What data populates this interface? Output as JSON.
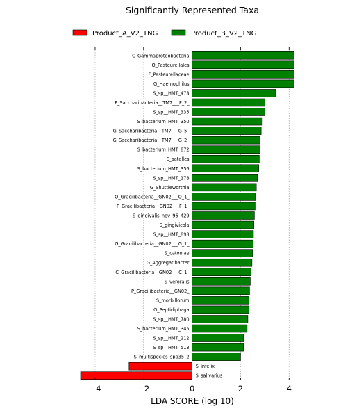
{
  "chart_data": {
    "type": "bar",
    "orientation": "horizontal",
    "title": "Significantly Represented Taxa",
    "xlabel": "LDA SCORE (log 10)",
    "ylabel": "",
    "xlim": [
      -4.6,
      4.25
    ],
    "xticks": [
      -4,
      -2,
      0,
      2,
      4
    ],
    "xtick_labels": [
      "−4",
      "−2",
      "0",
      "2",
      "4"
    ],
    "grid": "vertical dotted",
    "legend_position": "top",
    "series": [
      {
        "name": "Product_A_V2_TNG",
        "color": "#ff0000"
      },
      {
        "name": "Product_B_V2_TNG",
        "color": "#008000"
      }
    ],
    "bars": [
      {
        "label": "C_Gammaproteobacteria",
        "value": 4.2,
        "group": "Product_B_V2_TNG"
      },
      {
        "label": "O_Pasteurellales",
        "value": 4.2,
        "group": "Product_B_V2_TNG"
      },
      {
        "label": "F_Pasteurellaceae",
        "value": 4.2,
        "group": "Product_B_V2_TNG"
      },
      {
        "label": "G_Haemophilus",
        "value": 4.2,
        "group": "Product_B_V2_TNG"
      },
      {
        "label": "S_sp__HMT_473",
        "value": 3.45,
        "group": "Product_B_V2_TNG"
      },
      {
        "label": "F_Saccharibacteria__TM7___F_2_",
        "value": 3.0,
        "group": "Product_B_V2_TNG"
      },
      {
        "label": "S_sp__HMT_335",
        "value": 3.0,
        "group": "Product_B_V2_TNG"
      },
      {
        "label": "S_bacterium_HMT_350",
        "value": 2.9,
        "group": "Product_B_V2_TNG"
      },
      {
        "label": "G_Saccharibacteria__TM7___G_5_",
        "value": 2.85,
        "group": "Product_B_V2_TNG"
      },
      {
        "label": "G_Saccharibacteria__TM7___G_2_",
        "value": 2.8,
        "group": "Product_B_V2_TNG"
      },
      {
        "label": "S_bacterium_HMT_872",
        "value": 2.8,
        "group": "Product_B_V2_TNG"
      },
      {
        "label": "S_satelles",
        "value": 2.77,
        "group": "Product_B_V2_TNG"
      },
      {
        "label": "S_bacterium_HMT_356",
        "value": 2.75,
        "group": "Product_B_V2_TNG"
      },
      {
        "label": "S_sp__HMT_178",
        "value": 2.7,
        "group": "Product_B_V2_TNG"
      },
      {
        "label": "G_Shuttleworthia",
        "value": 2.65,
        "group": "Product_B_V2_TNG"
      },
      {
        "label": "O_Gracilibacteria__GN02___O_1_",
        "value": 2.62,
        "group": "Product_B_V2_TNG"
      },
      {
        "label": "F_Gracilibacteria__GN02___F_1_",
        "value": 2.6,
        "group": "Product_B_V2_TNG"
      },
      {
        "label": "S_gingivalis_nov_96_429",
        "value": 2.57,
        "group": "Product_B_V2_TNG"
      },
      {
        "label": "S_gingivicola",
        "value": 2.55,
        "group": "Product_B_V2_TNG"
      },
      {
        "label": "S_sp__HMT_898",
        "value": 2.53,
        "group": "Product_B_V2_TNG"
      },
      {
        "label": "G_Gracilibacteria__GN02___G_1_",
        "value": 2.52,
        "group": "Product_B_V2_TNG"
      },
      {
        "label": "S_catoniae",
        "value": 2.5,
        "group": "Product_B_V2_TNG"
      },
      {
        "label": "G_Aggregatibacter",
        "value": 2.47,
        "group": "Product_B_V2_TNG"
      },
      {
        "label": "C_Gracilibacteria__GN02___C_1_",
        "value": 2.43,
        "group": "Product_B_V2_TNG"
      },
      {
        "label": "S_veroralis",
        "value": 2.4,
        "group": "Product_B_V2_TNG"
      },
      {
        "label": "P_Gracilibacteria__GN02_",
        "value": 2.37,
        "group": "Product_B_V2_TNG"
      },
      {
        "label": "S_morbillorum",
        "value": 2.35,
        "group": "Product_B_V2_TNG"
      },
      {
        "label": "G_Peptidiphaga",
        "value": 2.35,
        "group": "Product_B_V2_TNG"
      },
      {
        "label": "S_sp__HMT_780",
        "value": 2.3,
        "group": "Product_B_V2_TNG"
      },
      {
        "label": "S_bacterium_HMT_345",
        "value": 2.27,
        "group": "Product_B_V2_TNG"
      },
      {
        "label": "S_sp__HMT_212",
        "value": 2.13,
        "group": "Product_B_V2_TNG"
      },
      {
        "label": "S_sp__HMT_513",
        "value": 2.12,
        "group": "Product_B_V2_TNG"
      },
      {
        "label": "S_multispecies_spp35_2",
        "value": 2.0,
        "group": "Product_B_V2_TNG"
      },
      {
        "label": "S_infelix",
        "value": -2.6,
        "group": "Product_A_V2_TNG"
      },
      {
        "label": "S_salivarius",
        "value": -4.6,
        "group": "Product_A_V2_TNG"
      }
    ]
  }
}
